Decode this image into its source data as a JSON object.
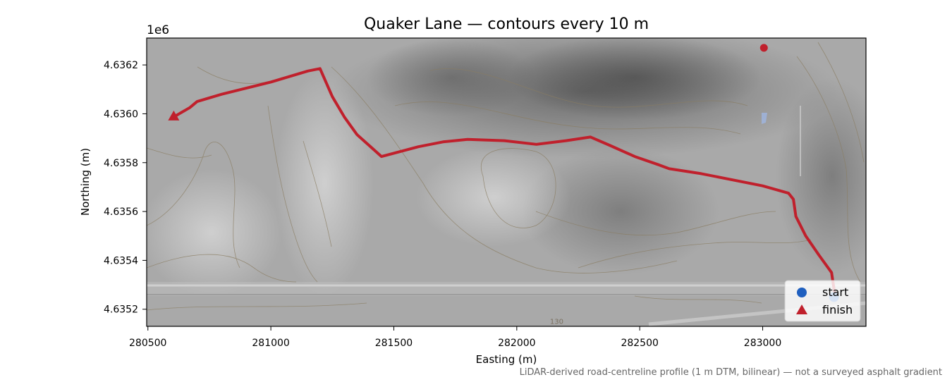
{
  "chart_data": {
    "type": "line",
    "title": "Quaker Lane — contours every 10 m",
    "xlabel": "Easting (m)",
    "ylabel": "Northing (m)",
    "y_offset_label": "1e6",
    "xlim": [
      280495,
      283420
    ],
    "ylim": [
      4635130,
      4636310
    ],
    "x_ticks": [
      280500,
      281000,
      281500,
      282000,
      282500,
      283000
    ],
    "x_tick_labels": [
      "280500",
      "281000",
      "281500",
      "282000",
      "282500",
      "283000"
    ],
    "y_ticks": [
      4635200,
      4635400,
      4635600,
      4635800,
      4636000,
      4636200
    ],
    "y_tick_labels": [
      "4.6352",
      "4.6354",
      "4.6356",
      "4.6358",
      "4.6360",
      "4.6362"
    ],
    "contour_label": "130",
    "grid": false,
    "legend_position": "lower-right",
    "route": {
      "color": "#c0202c",
      "x": [
        283295,
        283280,
        283230,
        283175,
        283135,
        283125,
        283105,
        283000,
        282850,
        282750,
        282620,
        282580,
        282480,
        282380,
        282300,
        282200,
        282080,
        281950,
        281800,
        281700,
        281600,
        281450,
        281400,
        281350,
        281300,
        281250,
        281200,
        281150,
        281000,
        280800,
        280700,
        280670,
        280610
      ],
      "y": [
        4635250,
        4635350,
        4635420,
        4635500,
        4635580,
        4635650,
        4635675,
        4635705,
        4635735,
        4635755,
        4635775,
        4635790,
        4635825,
        4635870,
        4635905,
        4635890,
        4635875,
        4635890,
        4635895,
        4635885,
        4635865,
        4635825,
        4635870,
        4635915,
        4635985,
        4636070,
        4636185,
        4636175,
        4636130,
        4636080,
        4636050,
        4636025,
        4635990
      ]
    },
    "markers": [
      {
        "name": "start",
        "x": 283290,
        "y": 4635250,
        "color": "#1f5fbf",
        "shape": "circle"
      },
      {
        "name": "finish",
        "x": 280605,
        "y": 4635990,
        "color": "#c0202c",
        "shape": "triangle"
      }
    ],
    "poi": {
      "x": 283005,
      "y": 4636270,
      "color": "#c0202c"
    },
    "legend": [
      {
        "label": "start",
        "color": "#1f5fbf",
        "shape": "circle"
      },
      {
        "label": "finish",
        "color": "#c0202c",
        "shape": "triangle"
      }
    ]
  },
  "caption": "LiDAR-derived road-centreline profile (1 m DTM, bilinear) — not a surveyed asphalt gradient"
}
